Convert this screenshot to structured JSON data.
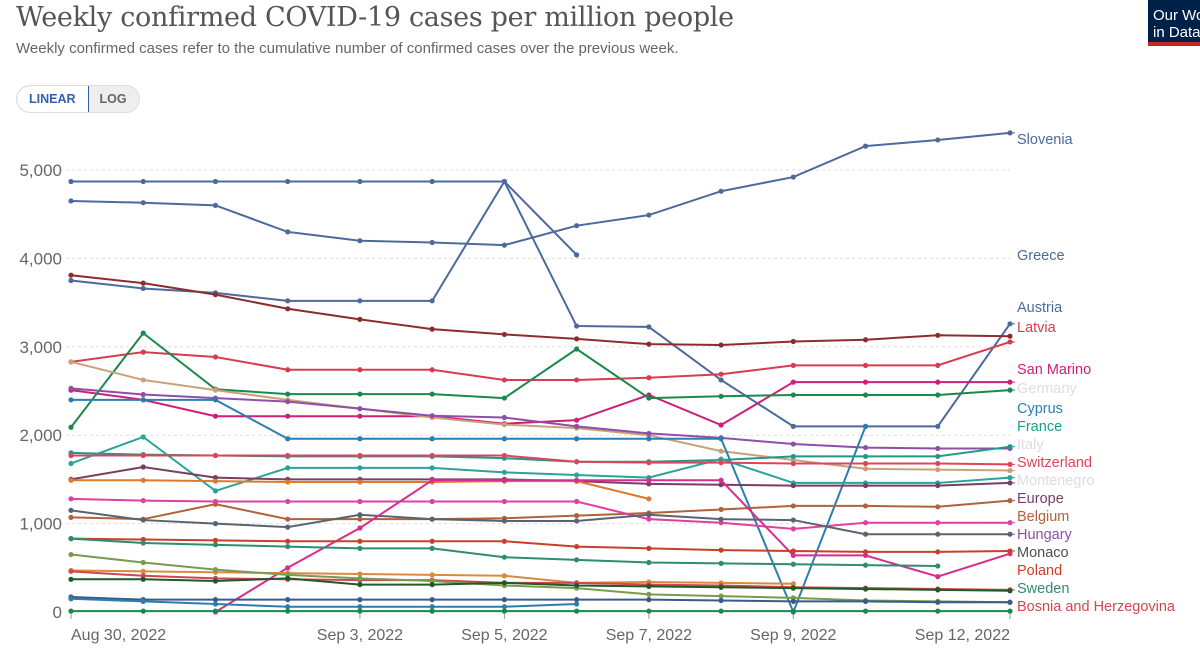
{
  "header": {
    "title": "Weekly confirmed COVID-19 cases per million people",
    "subtitle": "Weekly confirmed cases refer to the cumulative number of confirmed cases over the previous week.",
    "logo": "Our World in Data"
  },
  "controls": {
    "linear": "LINEAR",
    "log": "LOG",
    "selected": "LINEAR"
  },
  "chart_data": {
    "type": "line",
    "title": "Weekly confirmed COVID-19 cases per million people",
    "x": [
      "Aug 30, 2022",
      "Aug 31, 2022",
      "Sep 1, 2022",
      "Sep 2, 2022",
      "Sep 3, 2022",
      "Sep 4, 2022",
      "Sep 5, 2022",
      "Sep 6, 2022",
      "Sep 7, 2022",
      "Sep 8, 2022",
      "Sep 9, 2022",
      "Sep 10, 2022",
      "Sep 11, 2022",
      "Sep 12, 2022"
    ],
    "x_tick_labels": [
      {
        "i": 0,
        "label": "Aug 30, 2022"
      },
      {
        "i": 4,
        "label": "Sep 3, 2022"
      },
      {
        "i": 6,
        "label": "Sep 5, 2022"
      },
      {
        "i": 8,
        "label": "Sep 7, 2022"
      },
      {
        "i": 10,
        "label": "Sep 9, 2022"
      },
      {
        "i": 13,
        "label": "Sep 12, 2022"
      }
    ],
    "y_ticks": [
      0,
      1000,
      2000,
      3000,
      4000,
      5000
    ],
    "y_tick_labels": [
      "0",
      "1,000",
      "2,000",
      "3,000",
      "4,000",
      "5,000"
    ],
    "ylim": [
      0,
      5500
    ],
    "scale": "linear",
    "grid": "horizontal dashed",
    "legend": "right (line-end labels)",
    "series": [
      {
        "name": "Slovenia",
        "color": "#4c6a9c",
        "values": [
          4650,
          4630,
          4600,
          4300,
          4200,
          4180,
          4150,
          4370,
          4490,
          4760,
          4920,
          5270,
          5340,
          5420
        ]
      },
      {
        "name": "Austria",
        "color": "#4c6a9c",
        "values": [
          4870,
          4870,
          4870,
          4870,
          4870,
          4870,
          4870,
          3235,
          3225,
          2625,
          2100,
          2100,
          2100,
          3260
        ]
      },
      {
        "name": "Greece",
        "color": "#4c6a9c",
        "values": [
          3750,
          3660,
          3610,
          3520,
          3520,
          3520,
          4870,
          4040,
          null,
          null,
          null,
          null,
          null,
          null
        ]
      },
      {
        "color": "#8c2d2d",
        "values": [
          3810,
          3720,
          3590,
          3430,
          3310,
          3200,
          3140,
          3090,
          3030,
          3020,
          3060,
          3080,
          3130,
          3120
        ]
      },
      {
        "name": "Latvia",
        "color": "#d73c50",
        "values": [
          2830,
          2940,
          2885,
          2740,
          2740,
          2740,
          2625,
          2625,
          2650,
          2690,
          2790,
          2790,
          2790,
          3055
        ]
      },
      {
        "name": "San Marino",
        "color": "#cf1e7a",
        "values": [
          2510,
          2400,
          2215,
          2215,
          2215,
          2215,
          2130,
          2170,
          2455,
          2115,
          2600,
          2600,
          2600,
          2600
        ]
      },
      {
        "name": "Germany",
        "color": "#1a8a4a",
        "values": [
          2090,
          3155,
          2520,
          2465,
          2465,
          2465,
          2420,
          2975,
          2420,
          2440,
          2455,
          2455,
          2455,
          2510
        ]
      },
      {
        "name": "Montenegro",
        "color": "#c9a178",
        "values": [
          2830,
          2625,
          2510,
          2400,
          2300,
          2200,
          2120,
          2080,
          2000,
          1820,
          1720,
          1620,
          1610,
          1600
        ]
      },
      {
        "color": "#8e4fa8",
        "values": [
          2530,
          2460,
          2420,
          2380,
          2300,
          2220,
          2200,
          2100,
          2020,
          1970,
          1900,
          1860,
          1850,
          1850
        ]
      },
      {
        "name": "Cyprus",
        "color": "#2b7fb0",
        "values": [
          2400,
          2400,
          2400,
          1960,
          1960,
          1960,
          1960,
          1960,
          1960,
          1960,
          0,
          2100,
          null,
          null
        ]
      },
      {
        "name": "France",
        "color": "#1f9a8a",
        "values": [
          1800,
          1780,
          1770,
          1760,
          1760,
          1760,
          1740,
          1700,
          1700,
          1720,
          1760,
          1760,
          1760,
          1870
        ]
      },
      {
        "name": "Italy",
        "color": "#2aa39a",
        "values": [
          1680,
          1980,
          1370,
          1630,
          1630,
          1630,
          1580,
          1550,
          1520,
          1730,
          1460,
          1460,
          1460,
          1520
        ]
      },
      {
        "name": "Switzerland",
        "color": "#e0445a",
        "values": [
          1770,
          1770,
          1770,
          1770,
          1770,
          1770,
          1770,
          1700,
          1690,
          1690,
          1680,
          1680,
          1680,
          1670
        ]
      },
      {
        "name": "Europe",
        "color": "#7a3e64",
        "values": [
          1500,
          1640,
          1520,
          1500,
          1500,
          1500,
          1500,
          1480,
          1450,
          1440,
          1430,
          1430,
          1430,
          1460
        ]
      },
      {
        "color": "#e07a2a",
        "values": [
          1490,
          1490,
          1480,
          1470,
          1470,
          1470,
          1480,
          1480,
          1280,
          null,
          null,
          null,
          null,
          null
        ]
      },
      {
        "name": "Belgium",
        "color": "#b0623a",
        "values": [
          1070,
          1050,
          1220,
          1050,
          1050,
          1050,
          1060,
          1090,
          1120,
          1160,
          1200,
          1200,
          1190,
          1260
        ]
      },
      {
        "name": "Hungary",
        "color": "#e040a0",
        "values": [
          1280,
          1260,
          1250,
          1250,
          1250,
          1250,
          1250,
          1250,
          1050,
          1010,
          940,
          1010,
          1010,
          1010
        ]
      },
      {
        "name": "Monaco",
        "color": "#5a6470",
        "values": [
          1150,
          1040,
          1000,
          960,
          1100,
          1050,
          1030,
          1030,
          1100,
          1050,
          1040,
          880,
          880,
          880
        ]
      },
      {
        "color": "#d62e8f",
        "values": [
          null,
          null,
          0,
          500,
          950,
          1490,
          1490,
          1490,
          1490,
          1490,
          640,
          640,
          400,
          660
        ]
      },
      {
        "name": "Poland",
        "color": "#c8402a",
        "values": [
          830,
          820,
          810,
          800,
          800,
          800,
          800,
          740,
          720,
          700,
          690,
          680,
          680,
          690
        ]
      },
      {
        "name": "Sweden",
        "color": "#2e8b74",
        "values": [
          830,
          780,
          760,
          740,
          720,
          720,
          620,
          590,
          560,
          550,
          540,
          530,
          520,
          null
        ]
      },
      {
        "color": "#d98a40",
        "values": [
          470,
          460,
          450,
          440,
          430,
          420,
          410,
          330,
          340,
          330,
          320,
          null,
          null,
          null
        ]
      },
      {
        "name": "Bosnia and Herzegovina",
        "color": "#d2464e",
        "values": [
          460,
          410,
          380,
          370,
          360,
          360,
          330,
          330,
          310,
          300,
          280,
          270,
          260,
          250
        ]
      },
      {
        "color": "#7a9a50",
        "values": [
          650,
          560,
          480,
          420,
          380,
          350,
          300,
          270,
          200,
          180,
          160,
          130,
          120,
          110
        ]
      },
      {
        "color": "#1f5a2a",
        "values": [
          370,
          370,
          350,
          380,
          310,
          310,
          330,
          300,
          290,
          280,
          270,
          260,
          250,
          240
        ]
      },
      {
        "color": "#3a5a8a",
        "values": [
          170,
          140,
          140,
          140,
          140,
          140,
          140,
          140,
          140,
          130,
          120,
          120,
          110,
          110
        ]
      },
      {
        "color": "#2b7fb0",
        "values": [
          150,
          120,
          90,
          60,
          60,
          60,
          60,
          90,
          null,
          null,
          null,
          null,
          null,
          null
        ]
      },
      {
        "color": "#1a8a4a",
        "values": [
          10,
          10,
          10,
          10,
          10,
          10,
          10,
          10,
          10,
          10,
          10,
          10,
          10,
          10
        ]
      }
    ]
  },
  "end_labels": [
    {
      "text": "Slovenia",
      "color": "#4c6a9c"
    },
    {
      "text": "Greece",
      "color": "#4c6a9c"
    },
    {
      "text": "Austria",
      "color": "#4c6a9c"
    },
    {
      "text": "Latvia",
      "color": "#d73c50"
    },
    {
      "text": "San Marino",
      "color": "#cf1e7a"
    },
    {
      "text": "Germany",
      "color": "#ddd"
    },
    {
      "text": "Cyprus",
      "color": "#2b7fb0"
    },
    {
      "text": "France",
      "color": "#1f9a8a"
    },
    {
      "text": "Italy",
      "color": "#ddd"
    },
    {
      "text": "Switzerland",
      "color": "#e0445a"
    },
    {
      "text": "Montenegro",
      "color": "#ddd"
    },
    {
      "text": "Europe",
      "color": "#7a3e64"
    },
    {
      "text": "Belgium",
      "color": "#b0623a"
    },
    {
      "text": "Hungary",
      "color": "#8e4fa8"
    },
    {
      "text": "Monaco",
      "color": "#4a4f57"
    },
    {
      "text": "Poland",
      "color": "#c8402a"
    },
    {
      "text": "Sweden",
      "color": "#2e8b74"
    },
    {
      "text": "Bosnia and Herzegovina",
      "color": "#d2464e"
    }
  ]
}
